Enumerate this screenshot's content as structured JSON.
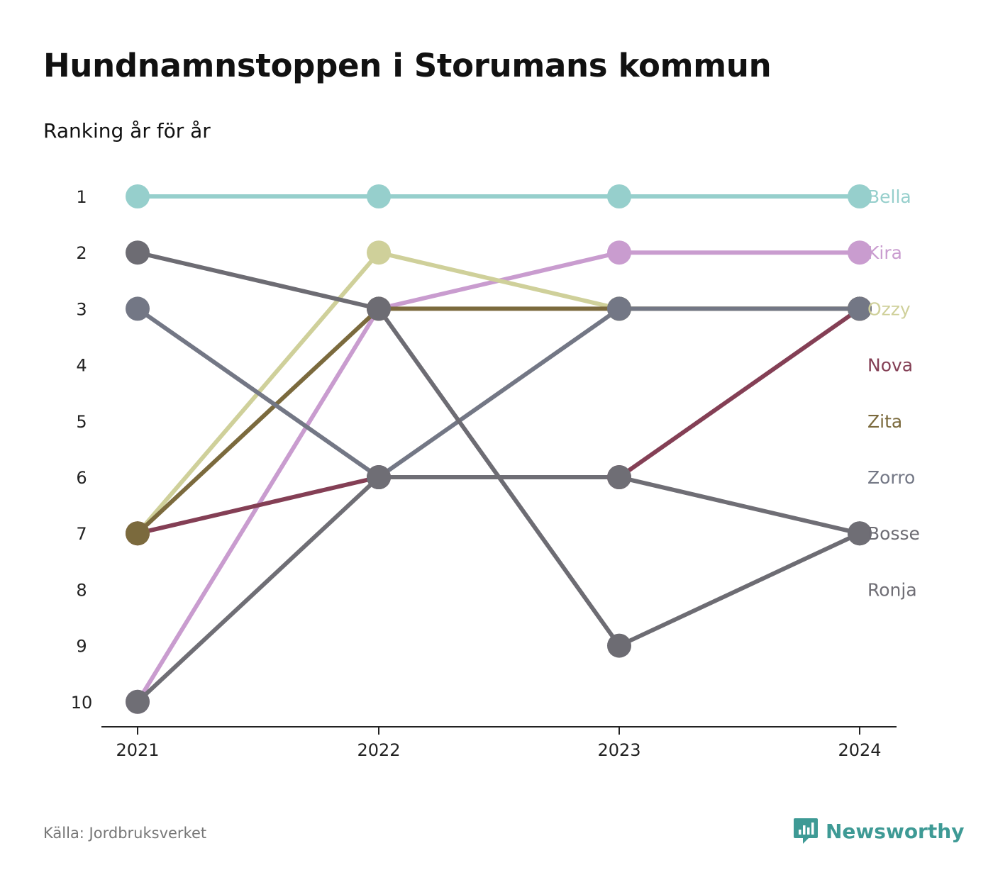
{
  "title": "Hundnamnstoppen i Storumans kommun",
  "subtitle": "Ranking år för år",
  "source": "Källa: Jordbruksverket",
  "brand": "Newsworthy",
  "colors": {
    "Bella": "#96cfcc",
    "Kira": "#c99ccf",
    "Ozzy": "#cfd09a",
    "Nova": "#843f55",
    "Zita": "#7b6a3d",
    "Zorro": "#737785",
    "Bosse": "#6d6c73",
    "Ronja": "#6f6e75",
    "axis": "#222222",
    "brand": "#3e9a95"
  },
  "chart_data": {
    "type": "line",
    "x": [
      "2021",
      "2022",
      "2023",
      "2024"
    ],
    "y_ticks": [
      "1",
      "2",
      "3",
      "4",
      "5",
      "6",
      "7",
      "8",
      "9",
      "10"
    ],
    "ylim": [
      1,
      10
    ],
    "y_reversed": true,
    "series": [
      {
        "name": "Bella",
        "values": [
          1,
          1,
          1,
          1
        ]
      },
      {
        "name": "Kira",
        "values": [
          10,
          3,
          2,
          2
        ]
      },
      {
        "name": "Ozzy",
        "values": [
          7,
          2,
          3,
          3
        ]
      },
      {
        "name": "Nova",
        "values": [
          7,
          6,
          6,
          3
        ]
      },
      {
        "name": "Zita",
        "values": [
          7,
          3,
          3,
          3
        ]
      },
      {
        "name": "Zorro",
        "values": [
          3,
          6,
          3,
          3
        ]
      },
      {
        "name": "Bosse",
        "values": [
          2,
          3,
          9,
          7
        ]
      },
      {
        "name": "Ronja",
        "values": [
          10,
          6,
          6,
          7
        ]
      }
    ],
    "legend": "end-labels-right",
    "grid": false
  }
}
